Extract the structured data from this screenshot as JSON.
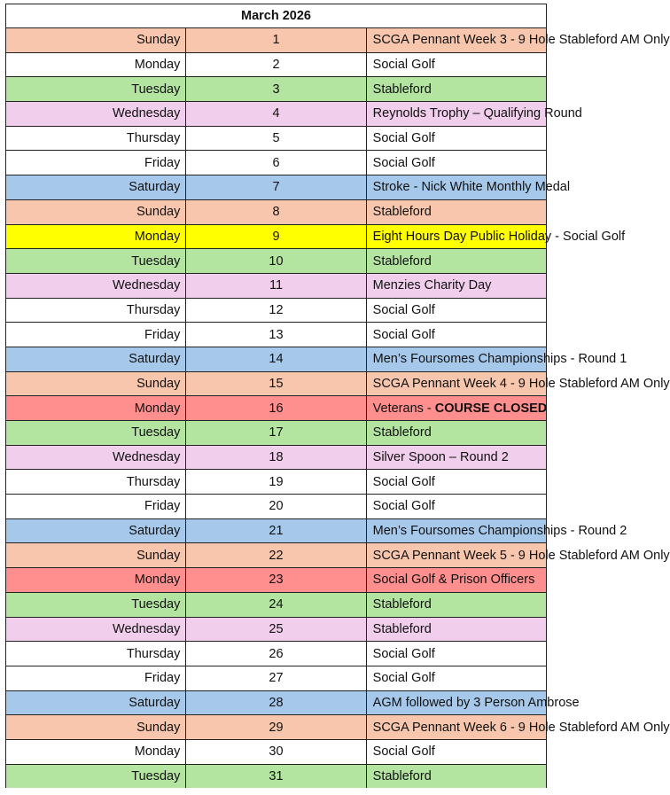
{
  "title": "March 2026",
  "colors": {
    "orange": "#F7C6AC",
    "white": "#FFFFFF",
    "green": "#B3E5A1",
    "pink": "#F1CEEC",
    "blue": "#A6C9EB",
    "yellow": "#FFFF00",
    "red": "#FF8F8F"
  },
  "rows": [
    {
      "day": "Sunday",
      "date": "1",
      "event": "SCGA Pennant Week 3 - 9 Hole Stableford AM Only",
      "color": "orange"
    },
    {
      "day": "Monday",
      "date": "2",
      "event": "Social Golf",
      "color": "white"
    },
    {
      "day": "Tuesday",
      "date": "3",
      "event": "Stableford",
      "color": "green"
    },
    {
      "day": "Wednesday",
      "date": "4",
      "event": "Reynolds Trophy – Qualifying Round",
      "color": "pink"
    },
    {
      "day": "Thursday",
      "date": "5",
      "event": "Social Golf",
      "color": "white"
    },
    {
      "day": "Friday",
      "date": "6",
      "event": "Social Golf",
      "color": "white"
    },
    {
      "day": "Saturday",
      "date": "7",
      "event": "Stroke - Nick White Monthly Medal",
      "color": "blue"
    },
    {
      "day": "Sunday",
      "date": "8",
      "event": "Stableford",
      "color": "orange"
    },
    {
      "day": "Monday",
      "date": "9",
      "event": "Eight Hours Day Public Holiday - Social Golf",
      "color": "yellow"
    },
    {
      "day": "Tuesday",
      "date": "10",
      "event": "Stableford",
      "color": "green"
    },
    {
      "day": "Wednesday",
      "date": "11",
      "event": "Menzies Charity Day",
      "color": "pink"
    },
    {
      "day": "Thursday",
      "date": "12",
      "event": "Social Golf",
      "color": "white"
    },
    {
      "day": "Friday",
      "date": "13",
      "event": "Social Golf",
      "color": "white"
    },
    {
      "day": "Saturday",
      "date": "14",
      "event": "Men’s Foursomes Championships - Round 1",
      "color": "blue"
    },
    {
      "day": "Sunday",
      "date": "15",
      "event": "SCGA Pennant Week 4 - 9 Hole Stableford AM Only",
      "color": "orange"
    },
    {
      "day": "Monday",
      "date": "16",
      "event": "Veterans - ",
      "event_bold": "COURSE CLOSED",
      "color": "red"
    },
    {
      "day": "Tuesday",
      "date": "17",
      "event": "Stableford",
      "color": "green"
    },
    {
      "day": "Wednesday",
      "date": "18",
      "event": "Silver Spoon – Round 2",
      "color": "pink"
    },
    {
      "day": "Thursday",
      "date": "19",
      "event": "Social Golf",
      "color": "white"
    },
    {
      "day": "Friday",
      "date": "20",
      "event": "Social Golf",
      "color": "white"
    },
    {
      "day": "Saturday",
      "date": "21",
      "event": "Men’s Foursomes Championships - Round 2",
      "color": "blue"
    },
    {
      "day": "Sunday",
      "date": "22",
      "event": "SCGA Pennant Week 5 - 9 Hole Stableford AM Only",
      "color": "orange"
    },
    {
      "day": "Monday",
      "date": "23",
      "event": "Social Golf & Prison Officers",
      "color": "red"
    },
    {
      "day": "Tuesday",
      "date": "24",
      "event": "Stableford",
      "color": "green"
    },
    {
      "day": "Wednesday",
      "date": "25",
      "event": "Stableford",
      "color": "pink"
    },
    {
      "day": "Thursday",
      "date": "26",
      "event": "Social Golf",
      "color": "white"
    },
    {
      "day": "Friday",
      "date": "27",
      "event": "Social Golf",
      "color": "white"
    },
    {
      "day": "Saturday",
      "date": "28",
      "event": "AGM followed by 3 Person Ambrose",
      "color": "blue"
    },
    {
      "day": "Sunday",
      "date": "29",
      "event": "SCGA Pennant Week 6 - 9 Hole Stableford AM Only",
      "color": "orange"
    },
    {
      "day": "Monday",
      "date": "30",
      "event": "Social Golf",
      "color": "white"
    },
    {
      "day": "Tuesday",
      "date": "31",
      "event": "Stableford",
      "color": "green"
    }
  ]
}
